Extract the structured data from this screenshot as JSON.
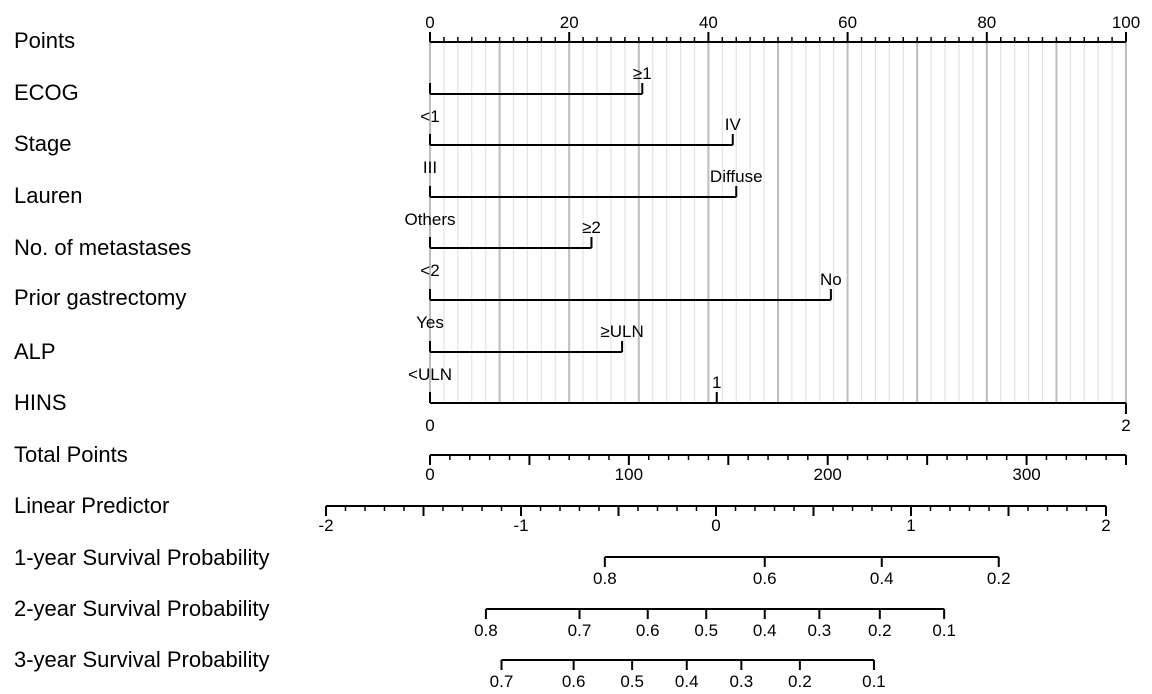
{
  "chart_data": {
    "type": "nomogram",
    "rows": [
      {
        "label": "Points",
        "kind": "scale",
        "range": [
          0,
          100
        ],
        "major_step": 20,
        "minor_step": 2,
        "labels": [
          {
            "value": 0,
            "text": "0"
          },
          {
            "value": 20,
            "text": "20"
          },
          {
            "value": 40,
            "text": "40"
          },
          {
            "value": 60,
            "text": "60"
          },
          {
            "value": 80,
            "text": "80"
          },
          {
            "value": 100,
            "text": "100"
          }
        ]
      },
      {
        "label": "ECOG",
        "kind": "variable",
        "levels": [
          {
            "text": "<1",
            "points": 0
          },
          {
            "text": "≥1",
            "points": 30.5
          }
        ]
      },
      {
        "label": "Stage",
        "kind": "variable",
        "levels": [
          {
            "text": "III",
            "points": 0
          },
          {
            "text": "IV",
            "points": 43.5
          }
        ]
      },
      {
        "label": "Lauren",
        "kind": "variable",
        "levels": [
          {
            "text": "Others",
            "points": 0
          },
          {
            "text": "Diffuse",
            "points": 44
          }
        ]
      },
      {
        "label": "No. of metastases",
        "kind": "variable",
        "levels": [
          {
            "text": "<2",
            "points": 0
          },
          {
            "text": "≥2",
            "points": 23.2
          }
        ]
      },
      {
        "label": "Prior gastrectomy",
        "kind": "variable",
        "levels": [
          {
            "text": "Yes",
            "points": 0
          },
          {
            "text": "No",
            "points": 57.6
          }
        ]
      },
      {
        "label": "ALP",
        "kind": "variable",
        "levels": [
          {
            "text": "<ULN",
            "points": 0
          },
          {
            "text": "≥ULN",
            "points": 27.6
          }
        ]
      },
      {
        "label": "HINS",
        "kind": "variable",
        "levels": [
          {
            "text": "0",
            "points": 0
          },
          {
            "text": "1",
            "points": 41.2
          },
          {
            "text": "2",
            "points": 100
          }
        ]
      },
      {
        "label": "Total Points",
        "kind": "scale",
        "range": [
          0,
          350
        ],
        "major_step": 50,
        "minor_step": 10,
        "labels": [
          {
            "value": 0,
            "text": "0"
          },
          {
            "value": 100,
            "text": "100"
          },
          {
            "value": 200,
            "text": "200"
          },
          {
            "value": 300,
            "text": "300"
          }
        ]
      },
      {
        "label": "Linear Predictor",
        "kind": "scale",
        "range": [
          -2,
          2
        ],
        "major_step": 0.5,
        "minor_step": 0.1,
        "labels": [
          {
            "value": -2,
            "text": "-2"
          },
          {
            "value": -1,
            "text": "-1"
          },
          {
            "value": 0,
            "text": "0"
          },
          {
            "value": 1,
            "text": "1"
          },
          {
            "value": 2,
            "text": "2"
          }
        ]
      },
      {
        "label": "1-year Survival Probability",
        "kind": "probability",
        "ticks": [
          {
            "text": "0.8",
            "lp": -0.57
          },
          {
            "text": "0.6",
            "lp": 0.25
          },
          {
            "text": "0.4",
            "lp": 0.85
          },
          {
            "text": "0.2",
            "lp": 1.45
          }
        ]
      },
      {
        "label": "2-year Survival Probability",
        "kind": "probability",
        "ticks": [
          {
            "text": "0.8",
            "lp": -1.18
          },
          {
            "text": "0.7",
            "lp": -0.7
          },
          {
            "text": "0.6",
            "lp": -0.35
          },
          {
            "text": "0.5",
            "lp": -0.05
          },
          {
            "text": "0.4",
            "lp": 0.25
          },
          {
            "text": "0.3",
            "lp": 0.53
          },
          {
            "text": "0.2",
            "lp": 0.84
          },
          {
            "text": "0.1",
            "lp": 1.17
          }
        ]
      },
      {
        "label": "3-year Survival Probability",
        "kind": "probability",
        "ticks": [
          {
            "text": "0.7",
            "lp": -1.1
          },
          {
            "text": "0.6",
            "lp": -0.73
          },
          {
            "text": "0.5",
            "lp": -0.43
          },
          {
            "text": "0.4",
            "lp": -0.15
          },
          {
            "text": "0.3",
            "lp": 0.13
          },
          {
            "text": "0.2",
            "lp": 0.43
          },
          {
            "text": "0.1",
            "lp": 0.81
          }
        ]
      }
    ]
  }
}
